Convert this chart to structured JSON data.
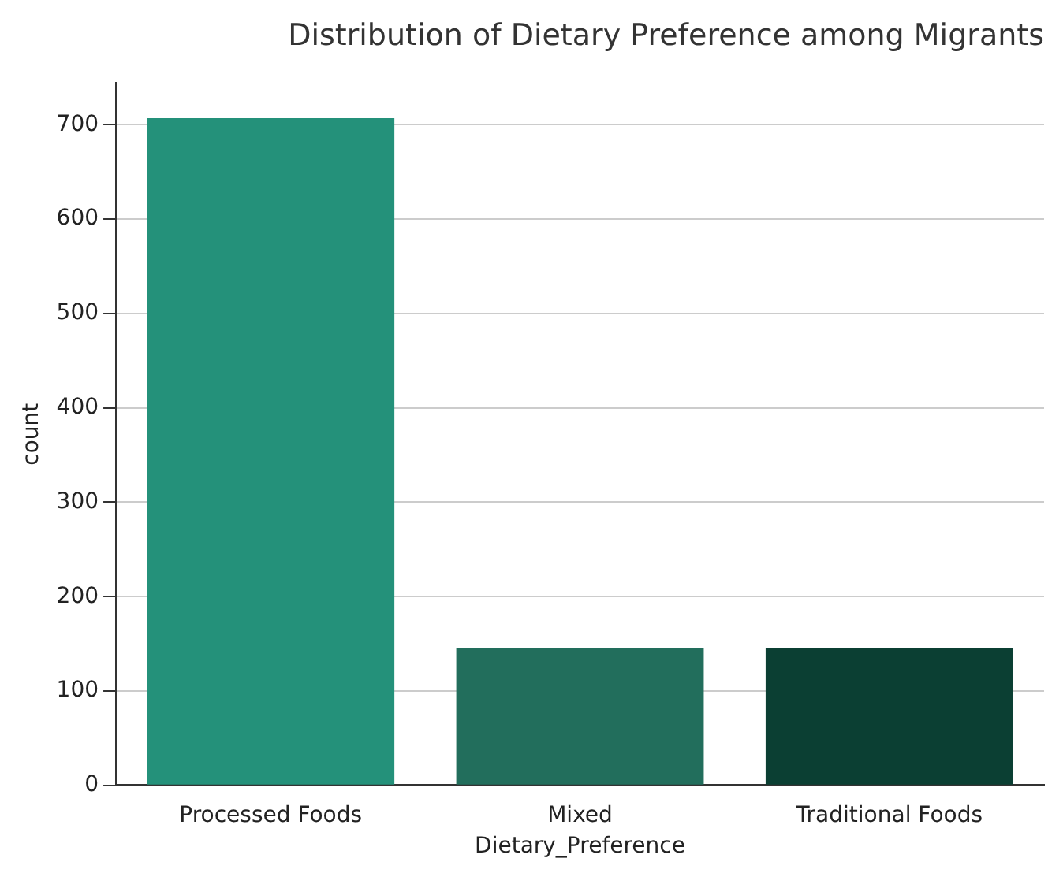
{
  "chart_data": {
    "type": "bar",
    "title": "Distribution of Dietary Preference among Migrants",
    "xlabel": "Dietary_Preference",
    "ylabel": "count",
    "categories": [
      "Processed Foods",
      "Mixed",
      "Traditional Foods"
    ],
    "values": [
      707,
      146,
      146
    ],
    "colors": [
      "#24917a",
      "#226e5c",
      "#0b3f33"
    ],
    "ylim": [
      0,
      744
    ],
    "yticks": [
      0,
      100,
      200,
      300,
      400,
      500,
      600,
      700
    ],
    "grid": "y",
    "legend": false
  }
}
